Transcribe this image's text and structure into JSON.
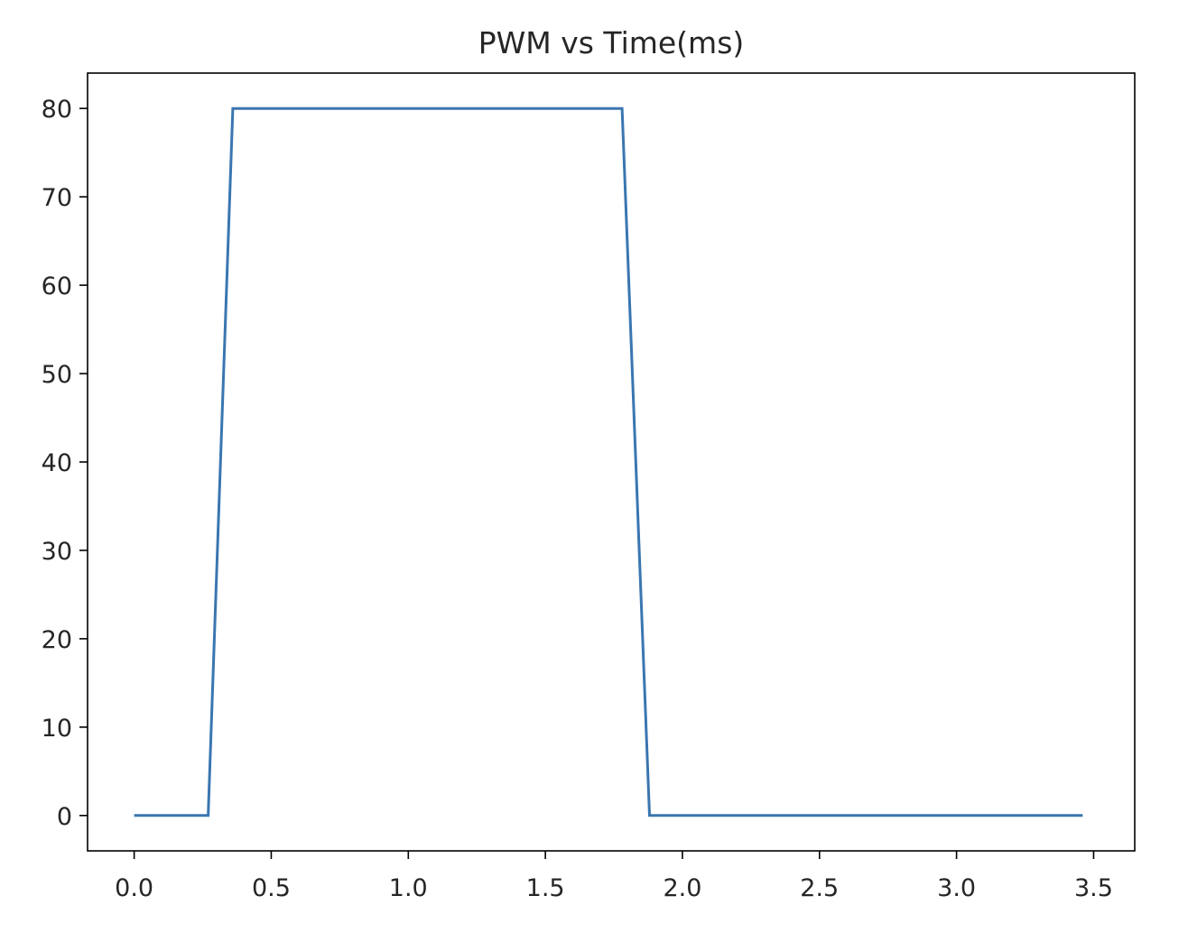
{
  "chart_data": {
    "type": "line",
    "title": "PWM vs Time(ms)",
    "xlabel": "",
    "ylabel": "",
    "xlim": [
      -0.17,
      3.65
    ],
    "ylim": [
      -4,
      84
    ],
    "x_ticks": [
      0.0,
      0.5,
      1.0,
      1.5,
      2.0,
      2.5,
      3.0,
      3.5
    ],
    "x_tick_labels": [
      "0.0",
      "0.5",
      "1.0",
      "1.5",
      "2.0",
      "2.5",
      "3.0",
      "3.5"
    ],
    "y_ticks": [
      0,
      10,
      20,
      30,
      40,
      50,
      60,
      70,
      80
    ],
    "y_tick_labels": [
      "0",
      "10",
      "20",
      "30",
      "40",
      "50",
      "60",
      "70",
      "80"
    ],
    "grid": false,
    "series": [
      {
        "color": "#3a76b0",
        "x": [
          0.0,
          0.27,
          0.36,
          1.78,
          1.88,
          3.46
        ],
        "y": [
          0,
          0,
          80,
          80,
          0,
          0
        ]
      }
    ]
  }
}
